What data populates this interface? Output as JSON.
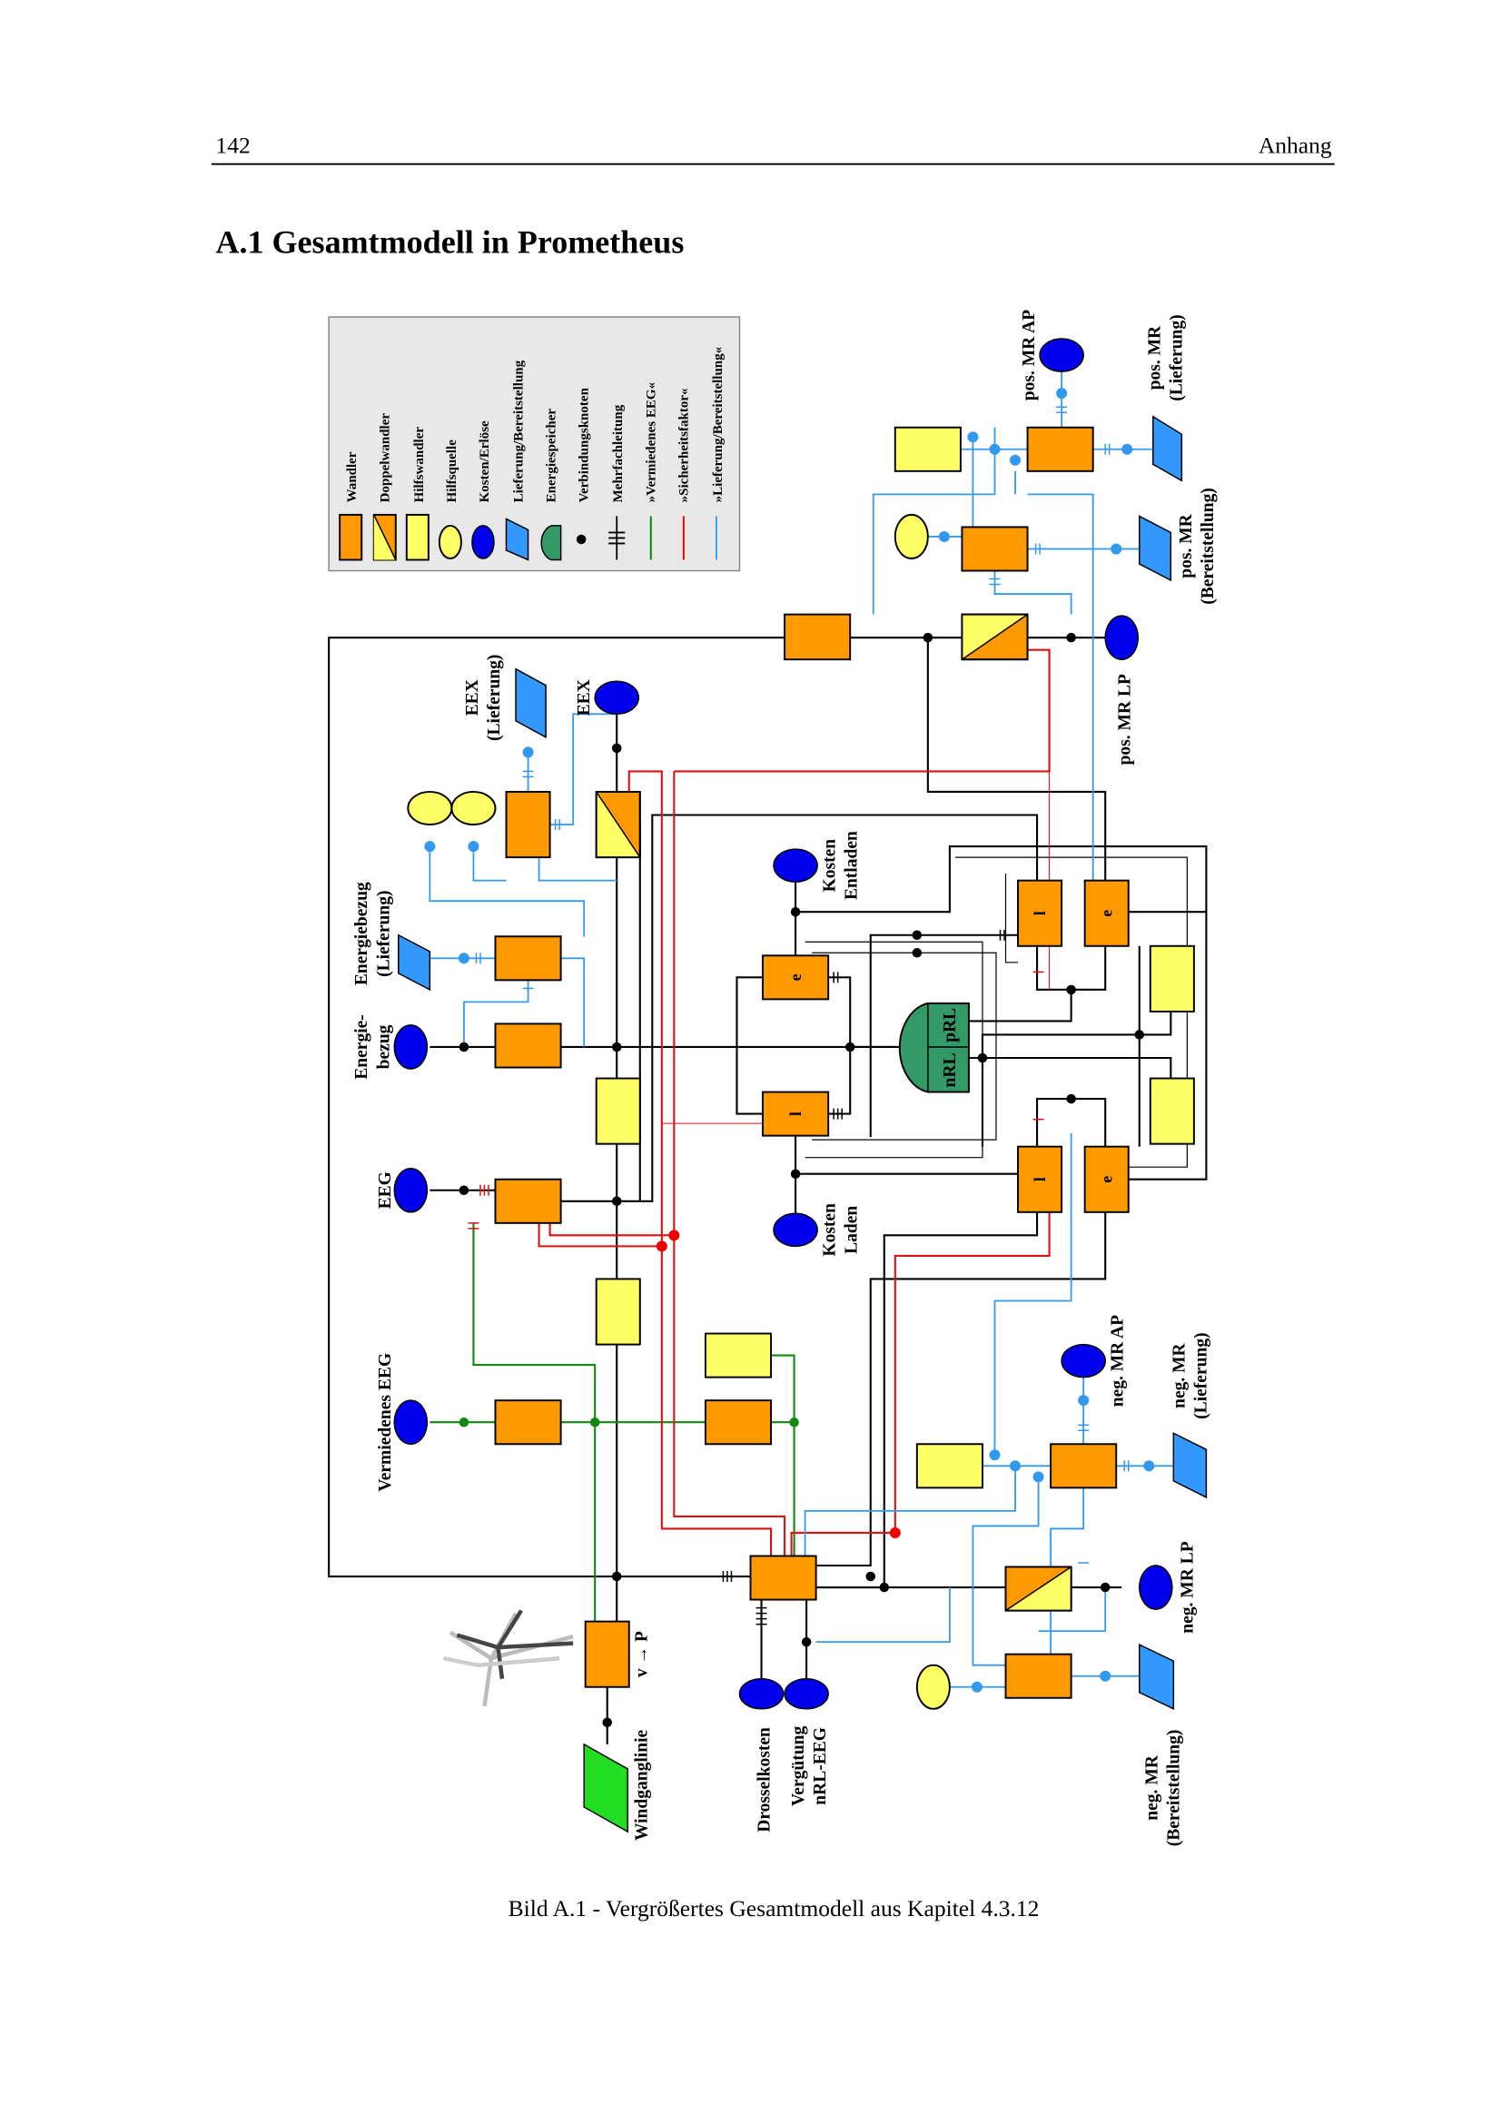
{
  "header": {
    "page_number": "142",
    "chapter": "Anhang"
  },
  "section_title": "A.1  Gesamtmodell in Prometheus",
  "legend": {
    "items": [
      {
        "symbol": "orange-rectangle",
        "label": "Wandler"
      },
      {
        "symbol": "split-rectangle",
        "label": "Doppelwandler"
      },
      {
        "symbol": "yellow-rectangle",
        "label": "Hilfswandler"
      },
      {
        "symbol": "yellow-ellipse",
        "label": "Hilfsquelle"
      },
      {
        "symbol": "blue-ellipse",
        "label": "Kosten/Erlöse"
      },
      {
        "symbol": "blue-parallelogram",
        "label": "Lieferung/Bereitstellung"
      },
      {
        "symbol": "green-half-ellipse",
        "label": "Energiespeicher"
      },
      {
        "symbol": "black-dot",
        "label": "Verbindungsknoten"
      },
      {
        "symbol": "multi-tick-line",
        "label": "Mehrfachleitung"
      },
      {
        "symbol": "green-line",
        "label": "»Vermiedenes EEG«"
      },
      {
        "symbol": "red-line",
        "label": "»Sicherheitsfaktor«"
      },
      {
        "symbol": "blue-line",
        "label": "»Lieferung/Bereitstellung«"
      }
    ]
  },
  "colors": {
    "wandler": "#ff9900",
    "hilfs": "#ffff66",
    "kosten": "#0000ee",
    "lieferung": "#3399ff",
    "speicher": "#339966",
    "wind": "#22dd22",
    "green_line": "#118811",
    "red_line": "#dd1111",
    "blue_line": "#3399ee"
  },
  "diagram": {
    "labels": {
      "pos_mr_ap": "pos. MR AP",
      "pos_mr_lieferung_1": "pos. MR",
      "pos_mr_lieferung_2": "(Lieferung)",
      "pos_mr_bereit_1": "pos. MR",
      "pos_mr_bereit_2": "(Bereitstellung)",
      "pos_mr_lp": "pos. MR LP",
      "eex_lieferung_1": "EEX",
      "eex_lieferung_2": "(Lieferung)",
      "eex": "EEX",
      "energiebezug_lieferung_1": "Energiebezug",
      "energiebezug_lieferung_2": "(Lieferung)",
      "energiebezug_1": "Energie-",
      "energiebezug_2": "bezug",
      "eeg": "EEG",
      "vermiedenes_eeg": "Vermiedenes EEG",
      "kosten_entladen_1": "Kosten",
      "kosten_entladen_2": "Entladen",
      "kosten_laden_1": "Kosten",
      "kosten_laden_2": "Laden",
      "neg_mr_ap": "neg. MR AP",
      "neg_mr_lieferung_1": "neg. MR",
      "neg_mr_lieferung_2": "(Lieferung)",
      "neg_mr_lp": "neg. MR LP",
      "neg_mr_bereit_1": "neg. MR",
      "neg_mr_bereit_2": "(Bereitstellung)",
      "drosselkosten": "Drosselkosten",
      "verguetung_1": "Vergütung",
      "verguetung_2": "nRL-EEG",
      "windganglinie": "Windganglinie",
      "wind_converter": "v → P",
      "speicher_nrl": "nRL",
      "speicher_prl": "pRL",
      "box_e": "e",
      "box_l": "l"
    }
  },
  "caption": "Bild A.1 - Vergrößertes Gesamtmodell aus Kapitel 4.3.12"
}
